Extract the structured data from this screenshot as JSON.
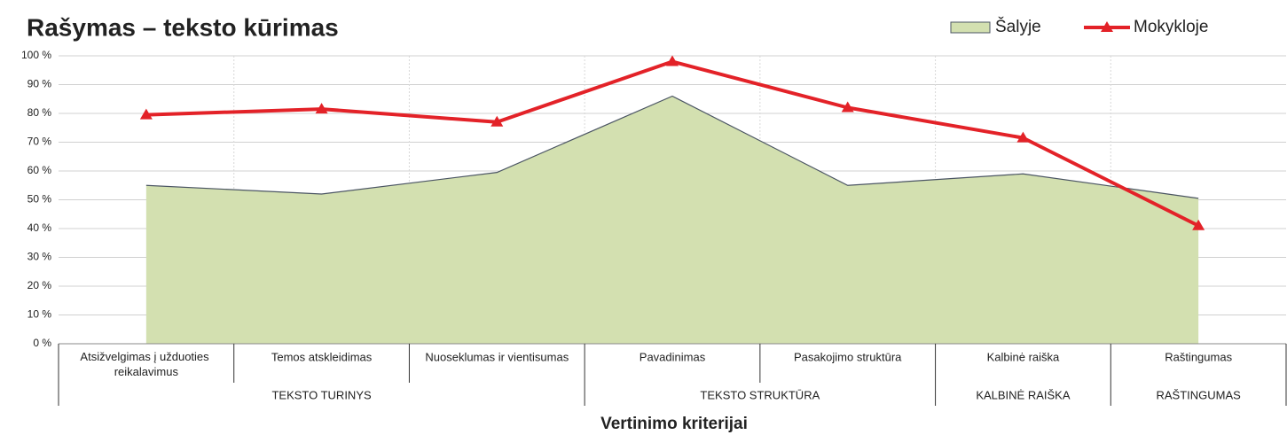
{
  "chart_data": {
    "type": "area_line",
    "title": "Rašymas – teksto kūrimas",
    "x_label": "Vertinimo kriterijai",
    "categories": [
      "Atsižvelgimas į užduoties reikalavimus",
      "Temos atskleidimas",
      "Nuoseklumas ir vientisumas",
      "Pavadinimas",
      "Pasakojimo struktūra",
      "Kalbinė raiška",
      "Raštingumas"
    ],
    "groups": [
      "TEKSTO TURINYS",
      "TEKSTO TURINYS",
      "TEKSTO TURINYS",
      "TEKSTO STRUKTŪRA",
      "TEKSTO STRUKTŪRA",
      "KALBINĖ RAIŠKA",
      "RAŠTINGUMAS"
    ],
    "series": [
      {
        "name": "Šalyje",
        "type": "area",
        "color": "#d3e0b0",
        "values": [
          55,
          52,
          59.5,
          86,
          55,
          59,
          50.5
        ]
      },
      {
        "name": "Mokykloje",
        "type": "line",
        "color": "#e32228",
        "values": [
          79.5,
          81.5,
          77,
          98,
          82,
          71.5,
          41
        ]
      }
    ],
    "ylim": [
      0,
      100
    ],
    "yticks": [
      {
        "value": 0,
        "label": "0 %"
      },
      {
        "value": 10,
        "label": "10 %"
      },
      {
        "value": 20,
        "label": "20 %"
      },
      {
        "value": 30,
        "label": "30 %"
      },
      {
        "value": 40,
        "label": "40 %"
      },
      {
        "value": 50,
        "label": "50 %"
      },
      {
        "value": 60,
        "label": "60 %"
      },
      {
        "value": 70,
        "label": "70 %"
      },
      {
        "value": 80,
        "label": "80 %"
      },
      {
        "value": 90,
        "label": "90 %"
      },
      {
        "value": 100,
        "label": "100 %"
      }
    ],
    "grid": true,
    "legend": "top-right"
  }
}
